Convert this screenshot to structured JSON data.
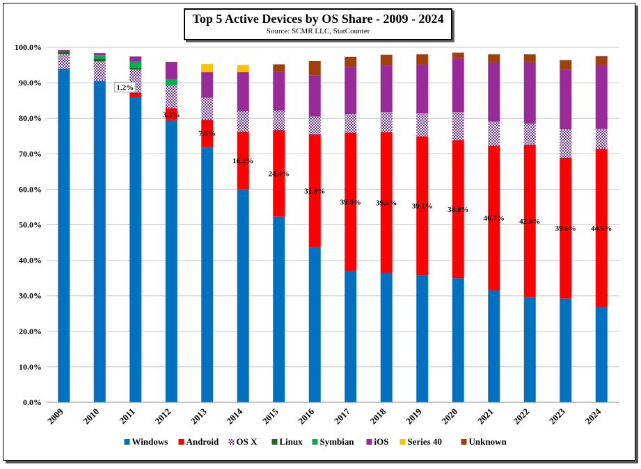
{
  "chart_data": {
    "type": "bar",
    "stacked": true,
    "title": "Top 5 Active Devices by OS Share - 2009 - 2024",
    "subtitle": "Source: SCMR LLC, StatCounter",
    "categories": [
      "2009",
      "2010",
      "2011",
      "2012",
      "2013",
      "2014",
      "2015",
      "2016",
      "2017",
      "2018",
      "2019",
      "2020",
      "2021",
      "2022",
      "2023",
      "2024"
    ],
    "ylim": [
      0,
      100
    ],
    "yticks": [
      "0.0%",
      "10.0%",
      "20.0%",
      "30.0%",
      "40.0%",
      "50.0%",
      "60.0%",
      "70.0%",
      "80.0%",
      "90.0%",
      "100.0%"
    ],
    "grid": true,
    "legend_position": "bottom",
    "series": [
      {
        "name": "Windows",
        "color": "#0070C0",
        "pattern": "solid",
        "values": [
          94.0,
          90.5,
          86.0,
          79.5,
          72.0,
          60.0,
          52.3,
          43.7,
          37.0,
          36.5,
          35.8,
          35.0,
          31.6,
          29.7,
          29.3,
          26.9
        ]
      },
      {
        "name": "Android",
        "color": "#FF0000",
        "pattern": "solid",
        "values": [
          0,
          0,
          1.2,
          3.3,
          7.6,
          16.2,
          24.4,
          31.8,
          39.0,
          39.6,
          39.1,
          38.8,
          40.7,
          42.8,
          39.6,
          44.5
        ]
      },
      {
        "name": "OS X",
        "color": "#7030A0",
        "pattern": "checker",
        "values": [
          4.0,
          5.5,
          6.5,
          6.5,
          6.2,
          5.8,
          5.5,
          5.0,
          5.2,
          5.7,
          6.5,
          8.0,
          6.8,
          6.0,
          8.0,
          5.6
        ]
      },
      {
        "name": "Linux",
        "color": "#1E6B1E",
        "pattern": "solid",
        "values": [
          0.8,
          0.8,
          0.5,
          0,
          0,
          0,
          0,
          0,
          0,
          0,
          0,
          0,
          0,
          0,
          0,
          0
        ]
      },
      {
        "name": "Symbian",
        "color": "#00B050",
        "pattern": "solid",
        "values": [
          0,
          1.0,
          1.8,
          1.8,
          0,
          0,
          0,
          0,
          0,
          0,
          0,
          0,
          0,
          0,
          0,
          0
        ]
      },
      {
        "name": "iOS",
        "color": "#9A2A9A",
        "pattern": "solid",
        "values": [
          0.4,
          0.6,
          1.4,
          4.8,
          7.2,
          11.0,
          11.0,
          11.6,
          13.3,
          13.1,
          13.8,
          15.2,
          16.6,
          17.4,
          16.9,
          18.0
        ]
      },
      {
        "name": "Series 40",
        "color": "#FFC000",
        "pattern": "solid",
        "values": [
          0,
          0,
          0,
          0,
          2.3,
          2.0,
          0,
          0,
          0,
          0,
          0,
          0,
          0,
          0,
          0,
          0
        ]
      },
      {
        "name": "Unknown",
        "color": "#A0410D",
        "pattern": "solid",
        "values": [
          0,
          0,
          0,
          0,
          0,
          0,
          2.0,
          4.0,
          2.8,
          3.0,
          2.8,
          1.5,
          2.3,
          2.1,
          2.6,
          2.5
        ]
      }
    ],
    "data_labels": {
      "series": "Android",
      "labels": [
        "",
        "",
        "1.2%",
        "3.3%",
        "7.6%",
        "16.2%",
        "24.4%",
        "31.8%",
        "39.0%",
        "39.6%",
        "39.1%",
        "38.8%",
        "40.7%",
        "42.8%",
        "39.6%",
        "44.5%"
      ]
    }
  }
}
